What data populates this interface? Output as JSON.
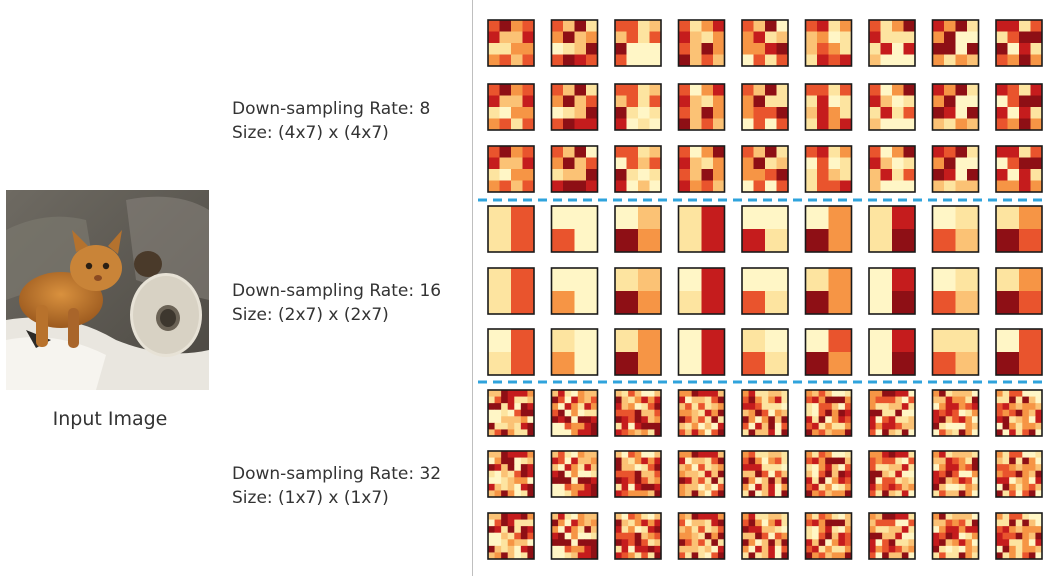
{
  "input": {
    "caption": "Input Image"
  },
  "groups": [
    {
      "rate_line": "Down-sampling Rate: 8",
      "size_line": "Size: (4x7) x (4x7)",
      "cells": 4
    },
    {
      "rate_line": "Down-sampling Rate: 16",
      "size_line": "Size: (2x7) x (2x7)",
      "cells": 2
    },
    {
      "rate_line": "Down-sampling Rate: 32",
      "size_line": "Size: (1x7) x (1x7)",
      "cells": 7
    }
  ],
  "colors": {
    "palette": [
      "#fff6c6",
      "#fde4a0",
      "#fbc275",
      "#f69545",
      "#e9542d",
      "#c51c1d",
      "#8e0f15"
    ],
    "separator": "#2fa3dc",
    "border": "#1a1a1a"
  }
}
